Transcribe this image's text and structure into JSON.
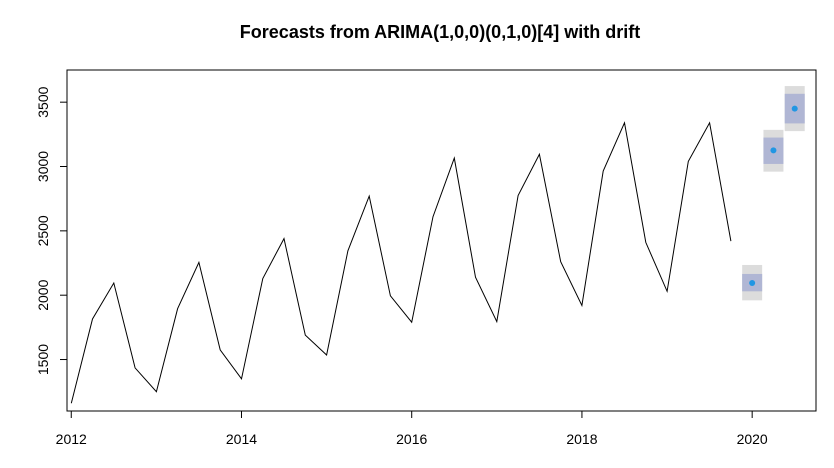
{
  "chart_data": {
    "type": "line",
    "title": "Forecasts from ARIMA(1,0,0)(0,1,0)[4] with drift",
    "xlabel": "",
    "ylabel": "",
    "xlim": [
      2011.95,
      2020.75
    ],
    "ylim": [
      1100,
      3750
    ],
    "x_ticks": [
      2012,
      2014,
      2016,
      2018,
      2020
    ],
    "y_ticks": [
      1500,
      2000,
      2500,
      3000,
      3500
    ],
    "grid": false,
    "legend": "none",
    "series": [
      {
        "color": "#000000",
        "x": [
          2012.0,
          2012.25,
          2012.5,
          2012.75,
          2013.0,
          2013.25,
          2013.5,
          2013.75,
          2014.0,
          2014.25,
          2014.5,
          2014.75,
          2015.0,
          2015.25,
          2015.5,
          2015.75,
          2016.0,
          2016.25,
          2016.5,
          2016.75,
          2017.0,
          2017.25,
          2017.5,
          2017.75,
          2018.0,
          2018.25,
          2018.5,
          2018.75,
          2019.0,
          2019.25,
          2019.5,
          2019.75
        ],
        "values": [
          1160,
          1815,
          2095,
          1435,
          1250,
          1895,
          2255,
          1575,
          1350,
          2130,
          2440,
          1690,
          1535,
          2345,
          2770,
          1995,
          1790,
          2610,
          3065,
          2140,
          1795,
          2775,
          3095,
          2260,
          1920,
          2965,
          3340,
          2410,
          2030,
          3040,
          3340,
          2420
        ]
      }
    ],
    "forecast": {
      "point_color": "#2196e3",
      "inner_band_color": "#b0b6d4",
      "outer_band_color": "#dcdcdc",
      "x": [
        2020.0,
        2020.25,
        2020.5
      ],
      "mean": [
        2095,
        3125,
        3450
      ],
      "lo80": [
        2030,
        3020,
        3335
      ],
      "hi80": [
        2165,
        3225,
        3565
      ],
      "lo95": [
        1960,
        2960,
        3275
      ],
      "hi95": [
        2235,
        3285,
        3625
      ]
    }
  }
}
